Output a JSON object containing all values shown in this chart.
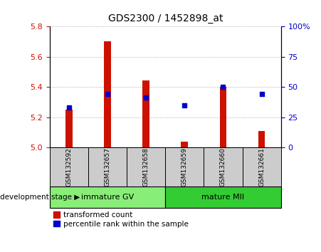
{
  "title": "GDS2300 / 1452898_at",
  "samples": [
    "GSM132592",
    "GSM132657",
    "GSM132658",
    "GSM132659",
    "GSM132660",
    "GSM132661"
  ],
  "transformed_counts": [
    5.25,
    5.7,
    5.445,
    5.04,
    5.4,
    5.11
  ],
  "percentile_ranks": [
    33,
    44,
    41,
    35,
    50,
    44
  ],
  "ylim_left": [
    5.0,
    5.8
  ],
  "ylim_right": [
    0,
    100
  ],
  "yticks_left": [
    5.0,
    5.2,
    5.4,
    5.6,
    5.8
  ],
  "yticks_right": [
    0,
    25,
    50,
    75,
    100
  ],
  "bar_color": "#cc1100",
  "dot_color": "#0000cc",
  "groups": [
    {
      "label": "immature GV",
      "samples": [
        0,
        1,
        2
      ],
      "color": "#88ee77"
    },
    {
      "label": "mature MII",
      "samples": [
        3,
        4,
        5
      ],
      "color": "#33cc33"
    }
  ],
  "xlabel_stage": "development stage",
  "legend_bar_label": "transformed count",
  "legend_dot_label": "percentile rank within the sample",
  "bar_width": 0.18,
  "baseline": 5.0,
  "grid_color": "#000000",
  "grid_alpha": 0.35,
  "tick_label_color_left": "#cc1100",
  "tick_label_color_right": "#0000cc",
  "bg_xlabel_area": "#cccccc",
  "bg_group_label_area_1": "#88ee77",
  "bg_group_label_area_2": "#33cc33"
}
